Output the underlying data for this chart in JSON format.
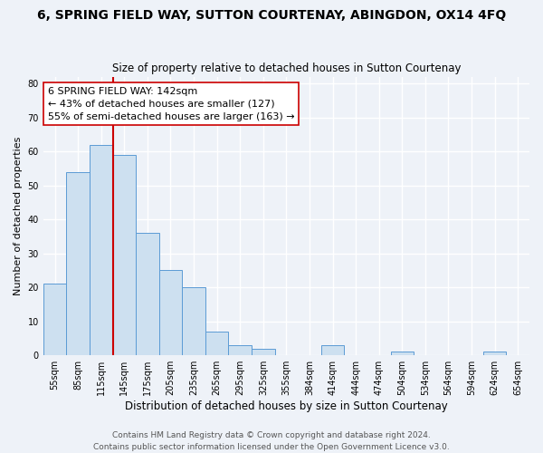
{
  "title": "6, SPRING FIELD WAY, SUTTON COURTENAY, ABINGDON, OX14 4FQ",
  "subtitle": "Size of property relative to detached houses in Sutton Courtenay",
  "xlabel": "Distribution of detached houses by size in Sutton Courtenay",
  "ylabel": "Number of detached properties",
  "bar_labels": [
    "55sqm",
    "85sqm",
    "115sqm",
    "145sqm",
    "175sqm",
    "205sqm",
    "235sqm",
    "265sqm",
    "295sqm",
    "325sqm",
    "355sqm",
    "384sqm",
    "414sqm",
    "444sqm",
    "474sqm",
    "504sqm",
    "534sqm",
    "564sqm",
    "594sqm",
    "624sqm",
    "654sqm"
  ],
  "bar_values": [
    21,
    54,
    62,
    59,
    36,
    25,
    20,
    7,
    3,
    2,
    0,
    0,
    3,
    0,
    0,
    1,
    0,
    0,
    0,
    1,
    0
  ],
  "bar_color": "#cde0f0",
  "bar_edge_color": "#5b9bd5",
  "property_line_color": "#cc0000",
  "property_line_x": 2.5,
  "annotation_line1": "6 SPRING FIELD WAY: 142sqm",
  "annotation_line2": "← 43% of detached houses are smaller (127)",
  "annotation_line3": "55% of semi-detached houses are larger (163) →",
  "annotation_box_color": "white",
  "annotation_box_edge": "#cc0000",
  "ylim": [
    0,
    82
  ],
  "yticks": [
    0,
    10,
    20,
    30,
    40,
    50,
    60,
    70,
    80
  ],
  "footer_line1": "Contains HM Land Registry data © Crown copyright and database right 2024.",
  "footer_line2": "Contains public sector information licensed under the Open Government Licence v3.0.",
  "bg_color": "#eef2f8",
  "plot_bg_color": "#eef2f8",
  "grid_color": "white",
  "title_fontsize": 10,
  "subtitle_fontsize": 8.5,
  "xlabel_fontsize": 8.5,
  "ylabel_fontsize": 8,
  "tick_fontsize": 7,
  "annotation_fontsize": 8,
  "footer_fontsize": 6.5
}
